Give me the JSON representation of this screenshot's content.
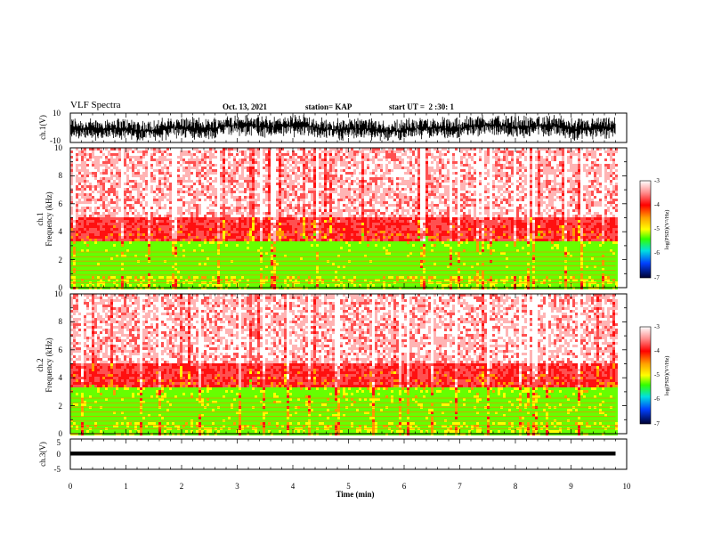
{
  "header": {
    "title": "VLF Spectra",
    "date": "Oct. 13, 2021",
    "station": "station= KAP",
    "start_ut": "start UT =  2 :30: 1"
  },
  "chart_data": [
    {
      "type": "line",
      "ylabel": "ch.1(V)",
      "ylim": [
        -10,
        10
      ],
      "ytick_labels": [
        "10",
        "-10"
      ],
      "xlim": [
        0,
        10
      ],
      "duration_min": 9.8,
      "series_color": "#000000"
    },
    {
      "type": "heatmap",
      "ylabel": "ch.1 Frequency (kHz)",
      "ylim": [
        0,
        10
      ],
      "ytick_labels": [
        "0",
        "2",
        "4",
        "6",
        "8",
        "10"
      ],
      "xlim": [
        0,
        10
      ],
      "colorbar": {
        "label": "log(PSD)(V²/Hz)",
        "range": [
          -7,
          -3
        ],
        "tick_labels": [
          "-3",
          "-4",
          "-5",
          "-6",
          "-7"
        ]
      }
    },
    {
      "type": "heatmap",
      "ylabel": "ch.2 Frequency (kHz)",
      "ylim": [
        0,
        10
      ],
      "ytick_labels": [
        "0",
        "2",
        "4",
        "6",
        "8",
        "10"
      ],
      "xlim": [
        0,
        10
      ],
      "colorbar": {
        "label": "log(PSD)(V²/Hz)",
        "range": [
          -7,
          -3
        ],
        "tick_labels": [
          "-3",
          "-4",
          "-5",
          "-6",
          "-7"
        ]
      }
    },
    {
      "type": "line",
      "ylabel": "ch.3(V)",
      "ylim": [
        -5,
        5
      ],
      "ytick_labels": [
        "5",
        "0",
        "-5"
      ],
      "xlim": [
        0,
        10
      ],
      "baseline_v": 0.2,
      "series_color": "#000000"
    }
  ],
  "x_axis": {
    "label": "Time (min)",
    "tick_labels": [
      "0",
      "1",
      "2",
      "3",
      "4",
      "5",
      "6",
      "7",
      "8",
      "9",
      "10"
    ]
  },
  "colormap": [
    "#ffffff",
    "#ffc8c8",
    "#ff4040",
    "#ff0000",
    "#ffa000",
    "#ffff00",
    "#a0ff00",
    "#00ff00",
    "#00ffff",
    "#0060ff",
    "#0000a0",
    "#000000"
  ]
}
